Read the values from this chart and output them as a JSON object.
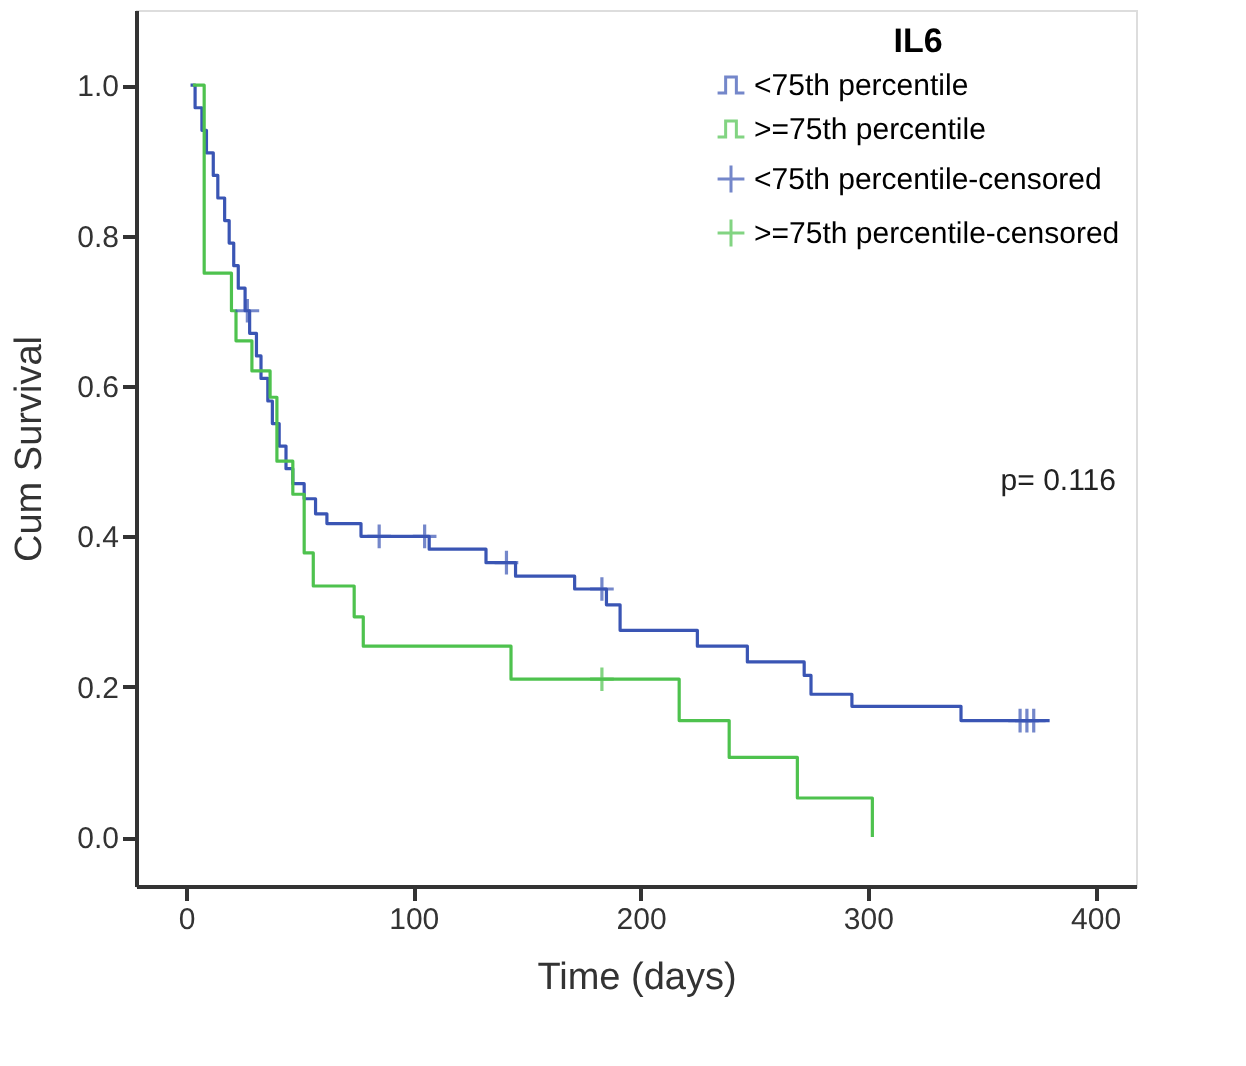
{
  "chart_data": {
    "type": "step",
    "legend_title": "IL6",
    "xlabel": "Time (days)",
    "ylabel": "Cum Survival",
    "xlim": [
      -22,
      418
    ],
    "ylim": [
      -0.065,
      1.1
    ],
    "xticks": [
      0,
      100,
      200,
      300,
      400
    ],
    "yticks": [
      {
        "value": 0,
        "label": "0.0"
      },
      {
        "value": 0.2,
        "label": "0.2"
      },
      {
        "value": 0.4,
        "label": "0.4"
      },
      {
        "value": 0.6,
        "label": "0.6"
      },
      {
        "value": 0.8,
        "label": "0.8"
      },
      {
        "value": 1,
        "label": "1.0"
      }
    ],
    "grid": false,
    "legend": "top right",
    "line_style": "solid",
    "annotations": [
      "p= 0.116"
    ],
    "series": [
      {
        "name": "<75th percentile",
        "color": "#3a55b4",
        "x": [
          2,
          4,
          7,
          9,
          12,
          14,
          17,
          19,
          21,
          23,
          26,
          28,
          31,
          33,
          36,
          38,
          41,
          44,
          47,
          52,
          57,
          62,
          77,
          107,
          132,
          145,
          171,
          185,
          191,
          225,
          247,
          272,
          275,
          293,
          341,
          380
        ],
        "values": [
          1.0,
          0.97,
          0.94,
          0.91,
          0.88,
          0.85,
          0.82,
          0.79,
          0.76,
          0.73,
          0.7,
          0.67,
          0.64,
          0.61,
          0.58,
          0.55,
          0.52,
          0.49,
          0.47,
          0.45,
          0.43,
          0.417,
          0.4,
          0.383,
          0.365,
          0.347,
          0.33,
          0.309,
          0.275,
          0.254,
          0.233,
          0.215,
          0.19,
          0.174,
          0.155,
          0.155
        ]
      },
      {
        "name": ">=75th percentile",
        "color": "#4ec24e",
        "x": [
          3,
          8,
          20,
          22,
          29,
          37,
          40,
          47,
          52,
          56,
          74,
          78,
          143,
          217,
          239,
          269,
          302,
          302
        ],
        "values": [
          1.0,
          0.75,
          0.7,
          0.66,
          0.62,
          0.585,
          0.5,
          0.456,
          0.378,
          0.334,
          0.293,
          0.254,
          0.21,
          0.155,
          0.106,
          0.052,
          0.052,
          0.0
        ]
      },
      {
        "name": "<75th percentile-censored",
        "type": "scatter",
        "marker": "cross",
        "color": "#3a55b4",
        "x": [
          27,
          85,
          105,
          141,
          183,
          367,
          370,
          373
        ],
        "values": [
          0.7,
          0.4,
          0.4,
          0.365,
          0.33,
          0.155,
          0.155,
          0.155
        ]
      },
      {
        "name": ">=75th percentile-censored",
        "type": "scatter",
        "marker": "cross",
        "color": "#4ec24e",
        "x": [
          183
        ],
        "values": [
          0.21
        ]
      }
    ]
  }
}
